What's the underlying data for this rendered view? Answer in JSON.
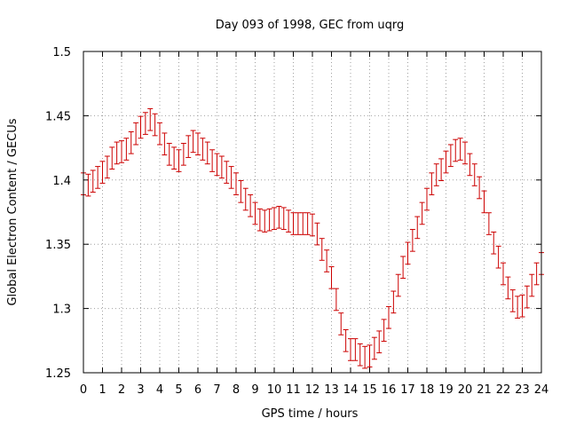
{
  "chart_data": {
    "type": "line",
    "title": "Day 093 of 1998, GEC from uqrg",
    "xlabel": "GPS time / hours",
    "ylabel": "Global Electron Content / GECUs",
    "xlim": [
      0,
      24
    ],
    "ylim": [
      1.25,
      1.5
    ],
    "grid": true,
    "error_bar_half_width": 0.0085,
    "x_ticks": [
      0,
      1,
      2,
      3,
      4,
      5,
      6,
      7,
      8,
      9,
      10,
      11,
      12,
      13,
      14,
      15,
      16,
      17,
      18,
      19,
      20,
      21,
      22,
      23,
      24
    ],
    "x_tick_labels": [
      "0",
      "1",
      "2",
      "3",
      "4",
      "5",
      "6",
      "7",
      "8",
      "9",
      "10",
      "11",
      "12",
      "13",
      "14",
      "15",
      "16",
      "17",
      "18",
      "19",
      "20",
      "21",
      "22",
      "23",
      "24"
    ],
    "y_ticks": [
      1.25,
      1.3,
      1.35,
      1.4,
      1.45,
      1.5
    ],
    "y_tick_labels": [
      "1.25",
      "1.3",
      "1.35",
      "1.4",
      "1.45",
      "1.5"
    ],
    "series": [
      {
        "name": "GEC",
        "color": "#cc0000",
        "x": [
          0,
          0.25,
          0.5,
          0.75,
          1,
          1.25,
          1.5,
          1.75,
          2,
          2.25,
          2.5,
          2.75,
          3,
          3.25,
          3.5,
          3.75,
          4,
          4.25,
          4.5,
          4.75,
          5,
          5.25,
          5.5,
          5.75,
          6,
          6.25,
          6.5,
          6.75,
          7,
          7.25,
          7.5,
          7.75,
          8,
          8.25,
          8.5,
          8.75,
          9,
          9.25,
          9.5,
          9.75,
          10,
          10.25,
          10.5,
          10.75,
          11,
          11.25,
          11.5,
          11.75,
          12,
          12.25,
          12.5,
          12.75,
          13,
          13.25,
          13.5,
          13.75,
          14,
          14.25,
          14.5,
          14.75,
          15,
          15.25,
          15.5,
          15.75,
          16,
          16.25,
          16.5,
          16.75,
          17,
          17.25,
          17.5,
          17.75,
          18,
          18.25,
          18.5,
          18.75,
          19,
          19.25,
          19.5,
          19.75,
          20,
          20.25,
          20.5,
          20.75,
          21,
          21.25,
          21.5,
          21.75,
          22,
          22.25,
          22.5,
          22.75,
          23,
          23.25,
          23.5,
          23.75,
          24
        ],
        "y": [
          1.397,
          1.396,
          1.399,
          1.402,
          1.406,
          1.41,
          1.417,
          1.421,
          1.422,
          1.424,
          1.429,
          1.436,
          1.441,
          1.444,
          1.447,
          1.443,
          1.436,
          1.428,
          1.42,
          1.417,
          1.415,
          1.42,
          1.426,
          1.43,
          1.428,
          1.424,
          1.421,
          1.415,
          1.412,
          1.41,
          1.406,
          1.402,
          1.397,
          1.391,
          1.385,
          1.38,
          1.374,
          1.369,
          1.368,
          1.369,
          1.37,
          1.371,
          1.37,
          1.368,
          1.366,
          1.366,
          1.366,
          1.366,
          1.365,
          1.358,
          1.346,
          1.337,
          1.324,
          1.307,
          1.288,
          1.275,
          1.268,
          1.268,
          1.264,
          1.262,
          1.263,
          1.269,
          1.274,
          1.283,
          1.293,
          1.305,
          1.318,
          1.332,
          1.343,
          1.353,
          1.363,
          1.374,
          1.385,
          1.397,
          1.404,
          1.408,
          1.414,
          1.419,
          1.423,
          1.424,
          1.421,
          1.412,
          1.404,
          1.394,
          1.383,
          1.366,
          1.351,
          1.34,
          1.327,
          1.316,
          1.306,
          1.301,
          1.302,
          1.309,
          1.318,
          1.327,
          1.335
        ]
      }
    ]
  }
}
